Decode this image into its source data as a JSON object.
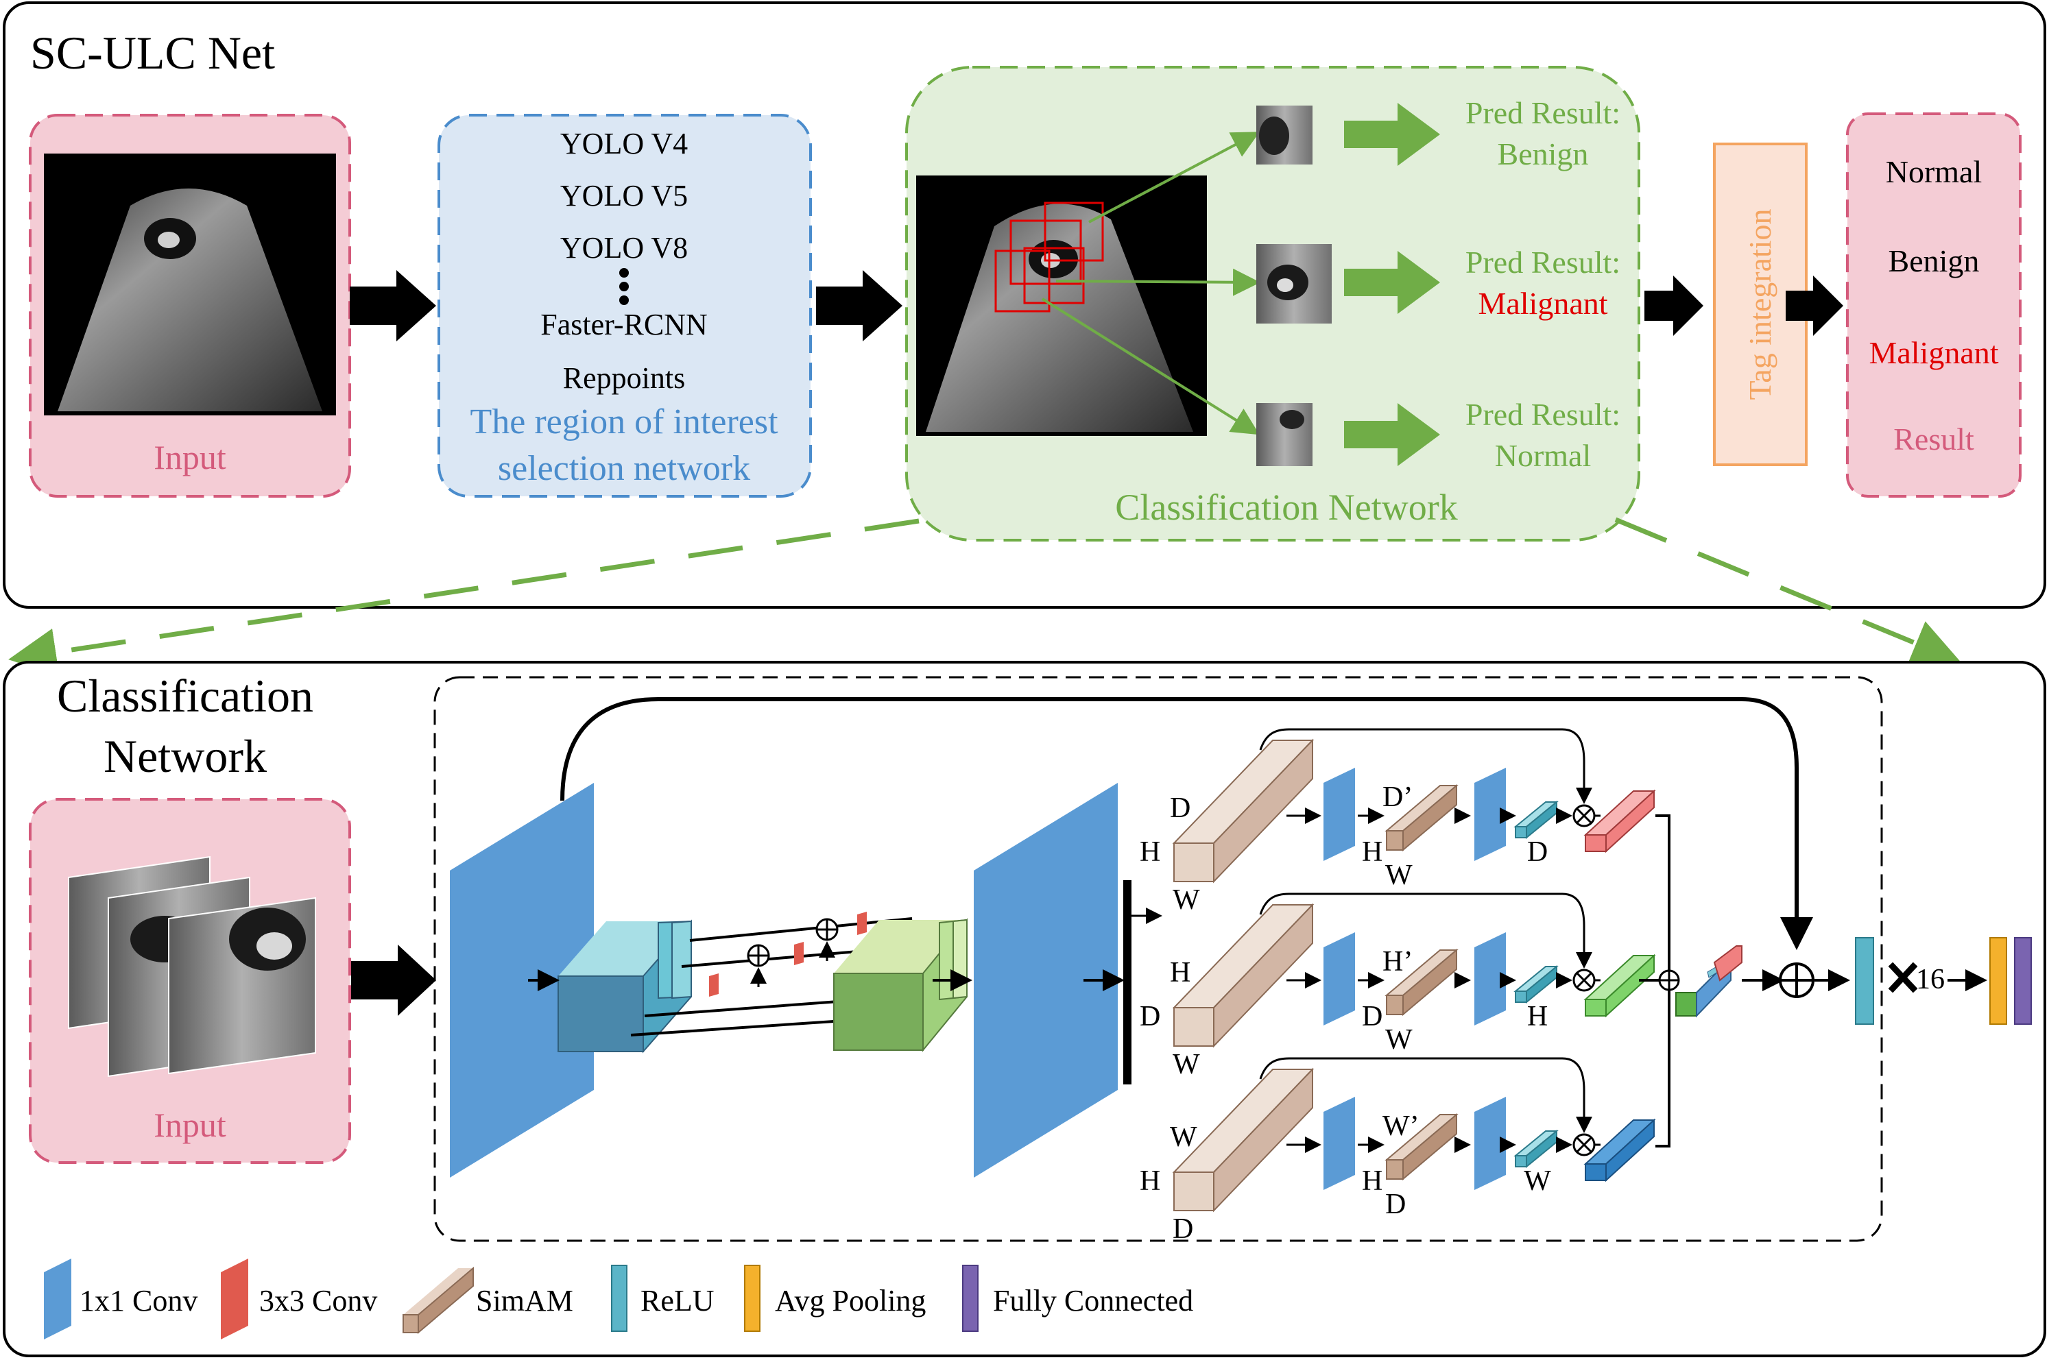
{
  "colors": {
    "green": "#70ad47",
    "green_fill": "#e2efda",
    "pink_fill": "#f4ccd5",
    "pink_stroke": "#d45a7b",
    "blue_fill": "#dbe7f4",
    "blue_stroke": "#4a8ccc",
    "orange_fill": "#fbe2d5",
    "orange_stroke": "#f4a460",
    "malignant_red": "#e00000",
    "conv1x1": "#5b9bd5",
    "conv3x3": "#e05a4e",
    "simam": "#d2b6a5",
    "relu": "#5bb5c8",
    "avgpool": "#f4b12c",
    "fc": "#7a64b0"
  },
  "top_panel": {
    "title": "SC-ULC Net",
    "input_label": "Input",
    "roi_models": [
      "YOLO V4",
      "YOLO V5",
      "YOLO V8",
      "Faster-RCNN",
      "Reppoints"
    ],
    "roi_label_line1": "The region of interest",
    "roi_label_line2": "selection network",
    "predictions": [
      {
        "prefix": "Pred Result:",
        "value": "Benign"
      },
      {
        "prefix": "Pred Result:",
        "value": "Malignant"
      },
      {
        "prefix": "Pred Result:",
        "value": "Normal"
      }
    ],
    "classification_label": "Classification Network",
    "tag_label": "Tag integration",
    "results": [
      "Normal",
      "Benign",
      "Malignant"
    ],
    "result_label": "Result"
  },
  "bottom_panel": {
    "title_line1": "Classification",
    "title_line2": "Network",
    "input_label": "Input",
    "branch_top": {
      "big_top": "D",
      "big_left": "H",
      "big_bottom": "W",
      "small_top": "D’",
      "small_left": "H",
      "small_bottom": "W",
      "out": "D"
    },
    "branch_mid": {
      "big_top": "H",
      "big_left": "D",
      "big_bottom": "W",
      "small_top": "H’",
      "small_left": "D",
      "small_bottom": "W",
      "out": "H"
    },
    "branch_bot": {
      "big_top": "W",
      "big_left": "H",
      "big_bottom": "D",
      "small_top": "W’",
      "small_left": "H",
      "small_bottom": "D",
      "out": "W"
    },
    "repeat_label": "16"
  },
  "legend": [
    {
      "icon": "conv-1x1-icon",
      "label": "1x1 Conv"
    },
    {
      "icon": "conv-3x3-icon",
      "label": "3x3 Conv"
    },
    {
      "icon": "simam-icon",
      "label": "SimAM"
    },
    {
      "icon": "relu-icon",
      "label": "ReLU"
    },
    {
      "icon": "avg-pooling-icon",
      "label": "Avg Pooling"
    },
    {
      "icon": "fully-connected-icon",
      "label": "Fully Connected"
    }
  ]
}
